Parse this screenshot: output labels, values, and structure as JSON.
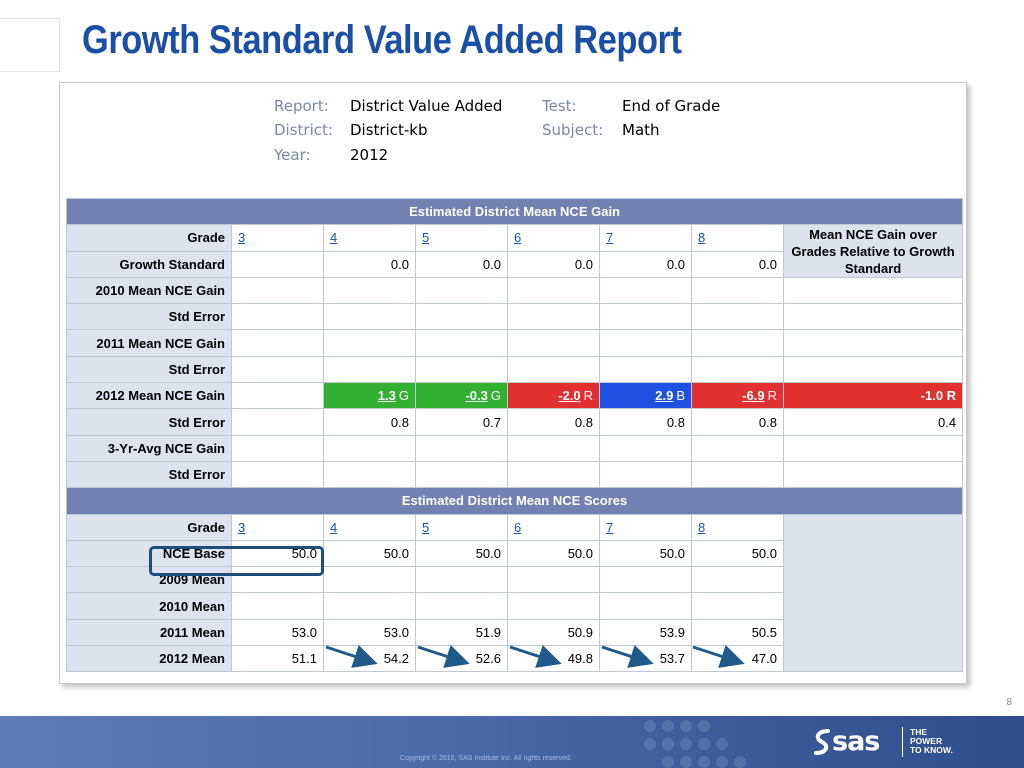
{
  "slide": {
    "title": "Growth Standard Value Added Report",
    "page_number": "8",
    "copyright": "Copyright © 2010, SAS Institute Inc. All rights reserved.",
    "logo_text": "sas",
    "logo_tagline": [
      "THE",
      "POWER",
      "TO KNOW."
    ]
  },
  "report_meta": {
    "report_label": "Report:",
    "report_value": "District Value Added",
    "test_label": "Test:",
    "test_value": "End of Grade",
    "district_label": "District:",
    "district_value": "District-kb",
    "subject_label": "Subject:",
    "subject_value": "Math",
    "year_label": "Year:",
    "year_value": "2012"
  },
  "gain_section": {
    "header": "Estimated District Mean NCE Gain",
    "grade_label": "Grade",
    "grades": [
      "3",
      "4",
      "5",
      "6",
      "7",
      "8"
    ],
    "summary_header": "Mean NCE Gain over Grades Relative to Growth Standard",
    "rows": [
      {
        "label": "Growth Standard",
        "values": [
          "",
          "0.0",
          "0.0",
          "0.0",
          "0.0",
          "0.0"
        ]
      },
      {
        "label": "2010 Mean NCE Gain",
        "values": [
          "",
          "",
          "",
          "",
          "",
          ""
        ],
        "summary": ""
      },
      {
        "label": "Std Error",
        "values": [
          "",
          "",
          "",
          "",
          "",
          ""
        ],
        "summary": ""
      },
      {
        "label": "2011 Mean NCE Gain",
        "values": [
          "",
          "",
          "",
          "",
          "",
          ""
        ],
        "summary": ""
      },
      {
        "label": "Std Error",
        "values": [
          "",
          "",
          "",
          "",
          "",
          ""
        ],
        "summary": ""
      },
      {
        "label": "2012 Mean NCE Gain",
        "values": [
          "",
          "1.3",
          "-0.3",
          "-2.0",
          "2.9",
          "-6.9"
        ],
        "codes": [
          "",
          "G",
          "G",
          "R",
          "B",
          "R"
        ],
        "summary": "-1.0 R"
      },
      {
        "label": "Std Error",
        "values": [
          "",
          "0.8",
          "0.7",
          "0.8",
          "0.8",
          "0.8"
        ],
        "summary": "0.4"
      },
      {
        "label": "3-Yr-Avg NCE Gain",
        "values": [
          "",
          "",
          "",
          "",
          "",
          ""
        ],
        "summary": ""
      },
      {
        "label": "Std Error",
        "values": [
          "",
          "",
          "",
          "",
          "",
          ""
        ],
        "summary": ""
      }
    ],
    "colors": {
      "G": "#32b032",
      "R": "#e03030",
      "B": "#2050e0"
    }
  },
  "score_section": {
    "header": "Estimated District Mean NCE Scores",
    "grade_label": "Grade",
    "grades": [
      "3",
      "4",
      "5",
      "6",
      "7",
      "8"
    ],
    "rows": [
      {
        "label": "NCE Base",
        "values": [
          "50.0",
          "50.0",
          "50.0",
          "50.0",
          "50.0",
          "50.0"
        ]
      },
      {
        "label": "2009 Mean",
        "values": [
          "",
          "",
          "",
          "",
          "",
          ""
        ]
      },
      {
        "label": "2010 Mean",
        "values": [
          "",
          "",
          "",
          "",
          "",
          ""
        ]
      },
      {
        "label": "2011 Mean",
        "values": [
          "53.0",
          "53.0",
          "51.9",
          "50.9",
          "53.9",
          "50.5"
        ]
      },
      {
        "label": "2012 Mean",
        "values": [
          "51.1",
          "54.2",
          "52.6",
          "49.8",
          "53.7",
          "47.0"
        ]
      }
    ]
  }
}
